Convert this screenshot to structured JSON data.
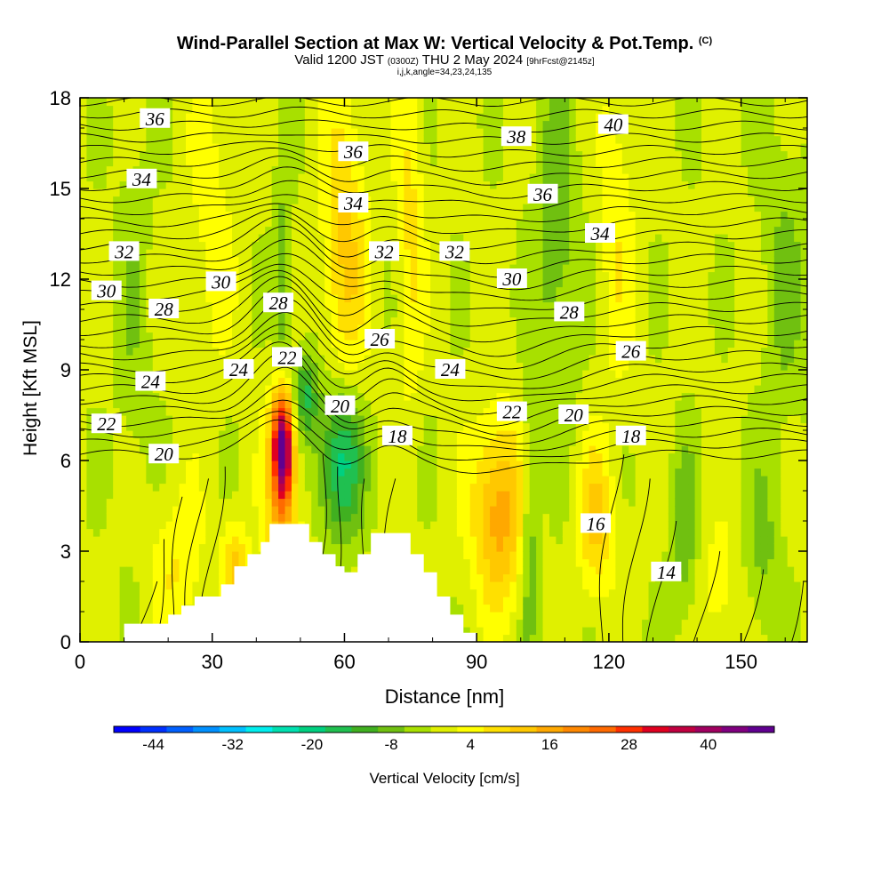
{
  "title": "Wind-Parallel Section at Max W: Vertical Velocity & Pot.Temp.",
  "title_mark": "(C)",
  "subtitle_valid": "Valid 1200 JST",
  "subtitle_utc": "(0300Z)",
  "subtitle_date": "THU 2 May 2024",
  "subtitle_fcst": "[9hrFcst@2145z]",
  "subtitle_indices": "i,j,k,angle=34,23,24,135",
  "chart_data": {
    "type": "heatmap",
    "xlabel": "Distance [nm]",
    "ylabel": "Height [Kft MSL]",
    "xlim": [
      0,
      165
    ],
    "ylim": [
      0,
      18
    ],
    "xticks": [
      0,
      30,
      60,
      90,
      120,
      150
    ],
    "yticks": [
      0,
      3,
      6,
      9,
      12,
      15,
      18
    ],
    "colorbar": {
      "label": "Vertical Velocity [cm/s]",
      "tick_labels": [
        -44,
        -32,
        -20,
        -8,
        4,
        16,
        28,
        40
      ],
      "range": [
        -50,
        50
      ],
      "step": 4,
      "colors": [
        "#0000ff",
        "#0030ff",
        "#0060ff",
        "#0090ff",
        "#00c0ff",
        "#00eeee",
        "#00e0b0",
        "#00d080",
        "#20c050",
        "#40b020",
        "#70c010",
        "#a8e000",
        "#e0f000",
        "#ffff00",
        "#ffe000",
        "#ffc800",
        "#ffa800",
        "#ff8800",
        "#ff6a00",
        "#ff3000",
        "#e00020",
        "#c00040",
        "#a00060",
        "#800080",
        "#600090"
      ]
    },
    "w_features": [
      {
        "x": 46,
        "z": 6.5,
        "sx": 2.2,
        "sz": 1.8,
        "w": 46
      },
      {
        "x": 46,
        "z": 4.5,
        "sx": 4,
        "sz": 3.5,
        "w": 14
      },
      {
        "x": 46,
        "z": 11,
        "sx": 2,
        "sz": 5,
        "w": -8
      },
      {
        "x": 59,
        "z": 6,
        "sx": 5,
        "sz": 2.5,
        "w": -20
      },
      {
        "x": 51,
        "z": 8.2,
        "sx": 3,
        "sz": 1.5,
        "w": -14
      },
      {
        "x": 60,
        "z": 13,
        "sx": 5,
        "sz": 5,
        "w": 12
      },
      {
        "x": 75,
        "z": 14,
        "sx": 3,
        "sz": 6,
        "w": 8
      },
      {
        "x": 95,
        "z": 4.3,
        "sx": 6,
        "sz": 3,
        "w": 18
      },
      {
        "x": 117,
        "z": 4,
        "sx": 4,
        "sz": 2.5,
        "w": 12
      },
      {
        "x": 102,
        "z": 4,
        "sx": 2,
        "sz": 4,
        "w": -10
      },
      {
        "x": 108,
        "z": 13,
        "sx": 5,
        "sz": 6,
        "w": -8
      },
      {
        "x": 122,
        "z": 14,
        "sx": 4,
        "sz": 6,
        "w": 6
      },
      {
        "x": 137,
        "z": 3.5,
        "sx": 3,
        "sz": 3,
        "w": -8
      },
      {
        "x": 145,
        "z": 1.8,
        "sx": 4,
        "sz": 2,
        "w": 6
      },
      {
        "x": 22,
        "z": 2.5,
        "sx": 6,
        "sz": 2.5,
        "w": 7
      },
      {
        "x": 35,
        "z": 2.5,
        "sx": 3,
        "sz": 1.5,
        "w": 12
      },
      {
        "x": 12,
        "z": 11,
        "sx": 4,
        "sz": 7,
        "w": -4
      },
      {
        "x": 30,
        "z": 14,
        "sx": 5,
        "sz": 5,
        "w": 5
      },
      {
        "x": 160,
        "z": 12,
        "sx": 5,
        "sz": 5,
        "w": -6
      },
      {
        "x": 155,
        "z": 3,
        "sx": 4,
        "sz": 3,
        "w": -6
      }
    ],
    "terrain": [
      [
        0,
        0
      ],
      [
        7,
        0
      ],
      [
        10,
        0.6
      ],
      [
        17,
        0.6
      ],
      [
        20,
        0.9
      ],
      [
        23,
        1.2
      ],
      [
        26,
        1.5
      ],
      [
        32,
        1.9
      ],
      [
        35,
        2.5
      ],
      [
        38,
        2.9
      ],
      [
        41,
        3.3
      ],
      [
        43,
        3.9
      ],
      [
        49,
        3.9
      ],
      [
        52,
        3.3
      ],
      [
        55,
        2.9
      ],
      [
        58,
        2.5
      ],
      [
        60,
        2.3
      ],
      [
        63,
        2.9
      ],
      [
        66,
        3.6
      ],
      [
        72,
        3.6
      ],
      [
        75,
        2.9
      ],
      [
        78,
        2.3
      ],
      [
        81,
        1.5
      ],
      [
        84,
        0.9
      ],
      [
        87,
        0.3
      ],
      [
        90,
        0
      ],
      [
        165,
        0
      ]
    ],
    "theta_labels": [
      {
        "text": "36",
        "x": 17,
        "z": 17.3
      },
      {
        "text": "34",
        "x": 14,
        "z": 15.3
      },
      {
        "text": "32",
        "x": 10,
        "z": 12.9
      },
      {
        "text": "30",
        "x": 6,
        "z": 11.6
      },
      {
        "text": "28",
        "x": 19,
        "z": 11.0
      },
      {
        "text": "24",
        "x": 16,
        "z": 8.6
      },
      {
        "text": "22",
        "x": 6,
        "z": 7.2
      },
      {
        "text": "20",
        "x": 19,
        "z": 6.2
      },
      {
        "text": "30",
        "x": 32,
        "z": 11.9
      },
      {
        "text": "28",
        "x": 45,
        "z": 11.2
      },
      {
        "text": "24",
        "x": 36,
        "z": 9.0
      },
      {
        "text": "22",
        "x": 47,
        "z": 9.4
      },
      {
        "text": "20",
        "x": 59,
        "z": 7.8
      },
      {
        "text": "18",
        "x": 72,
        "z": 6.8
      },
      {
        "text": "36",
        "x": 62,
        "z": 16.2
      },
      {
        "text": "34",
        "x": 62,
        "z": 14.5
      },
      {
        "text": "32",
        "x": 69,
        "z": 12.9
      },
      {
        "text": "32",
        "x": 85,
        "z": 12.9
      },
      {
        "text": "26",
        "x": 68,
        "z": 10.0
      },
      {
        "text": "24",
        "x": 84,
        "z": 9.0
      },
      {
        "text": "38",
        "x": 99,
        "z": 16.7
      },
      {
        "text": "30",
        "x": 98,
        "z": 12.0
      },
      {
        "text": "22",
        "x": 98,
        "z": 7.6
      },
      {
        "text": "20",
        "x": 112,
        "z": 7.5
      },
      {
        "text": "40",
        "x": 121,
        "z": 17.1
      },
      {
        "text": "36",
        "x": 105,
        "z": 14.8
      },
      {
        "text": "34",
        "x": 118,
        "z": 13.5
      },
      {
        "text": "28",
        "x": 111,
        "z": 10.9
      },
      {
        "text": "26",
        "x": 125,
        "z": 9.6
      },
      {
        "text": "18",
        "x": 125,
        "z": 6.8
      },
      {
        "text": "16",
        "x": 117,
        "z": 3.9
      },
      {
        "text": "14",
        "x": 133,
        "z": 2.3
      }
    ]
  }
}
